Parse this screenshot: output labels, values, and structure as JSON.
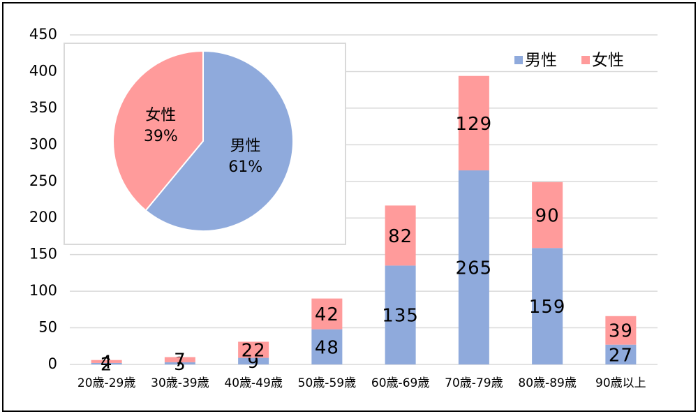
{
  "chart_data": [
    {
      "type": "bar",
      "stacked": true,
      "categories": [
        "20歳-29歳",
        "30歳-39歳",
        "40歳-49歳",
        "50歳-59歳",
        "60歳-69歳",
        "70歳-79歳",
        "80歳-89歳",
        "90歳以上"
      ],
      "series": [
        {
          "name": "男性",
          "color": "#8faadc",
          "values": [
            2,
            3,
            9,
            48,
            135,
            265,
            159,
            27
          ]
        },
        {
          "name": "女性",
          "color": "#ff9b9b",
          "values": [
            4,
            7,
            22,
            42,
            82,
            129,
            90,
            39
          ]
        }
      ],
      "ylim": [
        0,
        450
      ],
      "yticks": [
        0,
        50,
        100,
        150,
        200,
        250,
        300,
        350,
        400,
        450
      ],
      "grid": true,
      "legend": "top-right"
    },
    {
      "type": "pie",
      "categories": [
        "男性",
        "女性"
      ],
      "values": [
        61,
        39
      ],
      "value_labels": [
        "61%",
        "39%"
      ],
      "colors": [
        "#8faadc",
        "#ff9b9b"
      ]
    }
  ]
}
